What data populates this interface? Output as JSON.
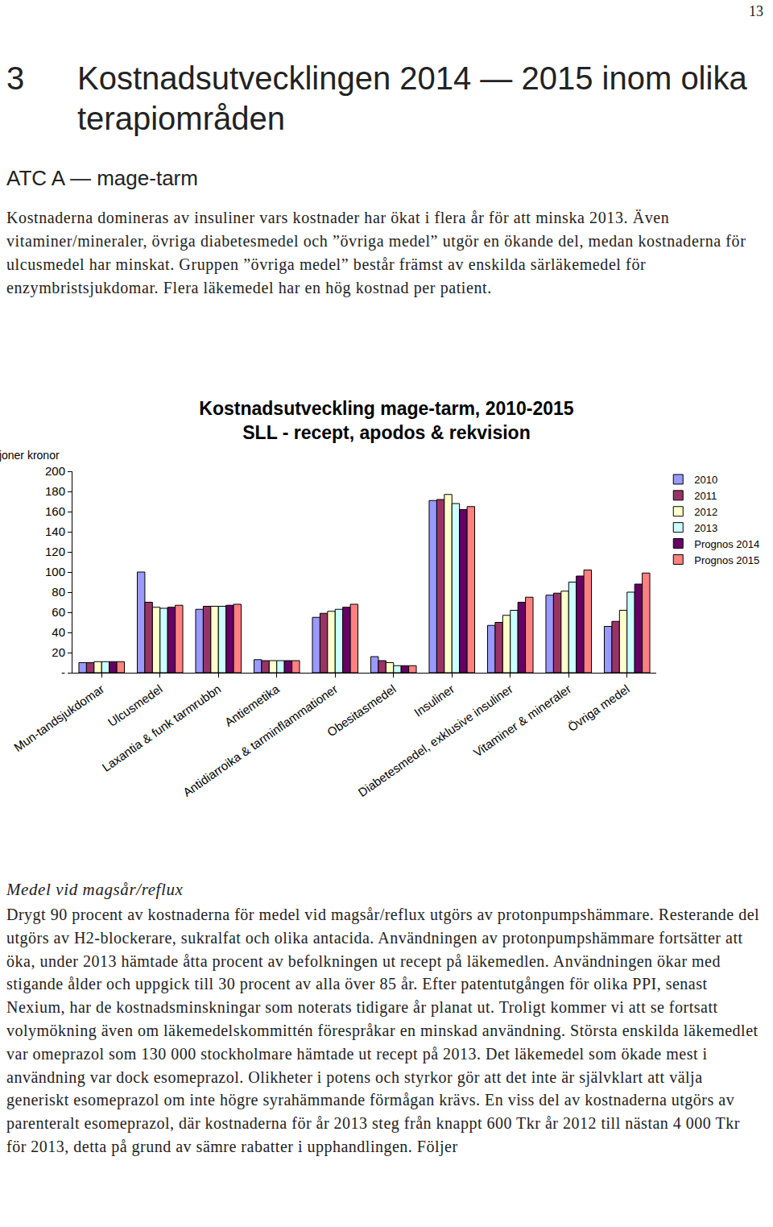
{
  "page_number": "13",
  "heading": {
    "number": "3",
    "text": "Kostnadsutvecklingen 2014 — 2015 inom olika terapiområden"
  },
  "section": "ATC A — mage-tarm",
  "intro": "Kostnaderna domineras av insuliner vars kostnader har ökat i flera år för att minska 2013. Även vitaminer/mineraler, övriga diabetesmedel och ”övriga medel” utgör en ökande del, medan kostnaderna för ulcusmedel har minskat. Gruppen ”övriga medel” består främst av enskilda särläkemedel för enzymbristsjukdomar. Flera läkemedel har en hög kostnad per patient.",
  "chart_data": {
    "type": "bar",
    "title": "Kostnadsutveckling mage-tarm, 2010-2015\nSLL - recept, apodos & rekvision",
    "y_label": "Miljoner kronor",
    "categories": [
      "Mun-tandsjukdomar",
      "Ulcusmedel",
      "Laxantia & funk tarmrubbn",
      "Antiemetika",
      "Antidiarroika & tarminflammationer",
      "Obesitasmedel",
      "Insuliner",
      "Diabetesmedel, exklusive insuliner",
      "Vitaminer & mineraler",
      "Övriga medel"
    ],
    "series": [
      {
        "name": "2010",
        "color": "#9999ff",
        "values": [
          10,
          100,
          63,
          13,
          55,
          16,
          171,
          47,
          77,
          46
        ]
      },
      {
        "name": "2011",
        "color": "#993366",
        "values": [
          10,
          70,
          66,
          12,
          59,
          12,
          172,
          50,
          79,
          51
        ]
      },
      {
        "name": "2012",
        "color": "#ffffcc",
        "values": [
          11,
          65,
          66,
          12,
          61,
          10,
          177,
          57,
          81,
          62
        ]
      },
      {
        "name": "2013",
        "color": "#ccffff",
        "values": [
          11,
          64,
          66,
          12,
          63,
          7,
          168,
          62,
          90,
          80
        ]
      },
      {
        "name": "Prognos 2014",
        "color": "#660066",
        "values": [
          11,
          65,
          67,
          12,
          65,
          7,
          162,
          70,
          96,
          88
        ]
      },
      {
        "name": "Prognos 2015",
        "color": "#ff8080",
        "values": [
          11,
          67,
          68,
          12,
          68,
          7,
          165,
          75,
          102,
          99
        ]
      }
    ],
    "ylim": [
      0,
      200
    ],
    "yticks": [
      {
        "value": 0,
        "label": "-"
      },
      20,
      40,
      60,
      80,
      100,
      120,
      140,
      160,
      180,
      200
    ],
    "grid": false,
    "legend": "right"
  },
  "subheading": "Medel vid magsår/reflux",
  "body": "Drygt 90 procent av kostnaderna för medel vid magsår/reflux utgörs av protonpumpshämmare. Resterande del utgörs av H2-blockerare, sukralfat och olika antacida. Användningen av protonpumpshämmare fortsätter att öka, under 2013 hämtade åtta procent av befolkningen ut recept på läkemedlen. Användningen ökar med stigande ålder och uppgick till 30 procent av alla över 85 år. Efter patentutgången för olika PPI, senast Nexium, har de kostnadsminskningar som noterats tidigare år planat ut. Troligt kommer vi att se fortsatt volymökning även om läkemedelskommittén förespråkar en minskad användning. Största enskilda läkemedlet var omeprazol som 130 000 stockholmare hämtade ut recept på 2013. Det läkemedel som ökade mest i användning var dock esomeprazol. Olikheter i potens och styrkor gör att det inte är självklart att välja generiskt esomeprazol om inte högre syrahämmande förmågan krävs. En viss del av kostnaderna utgörs av parenteralt esomeprazol, där kostnaderna för år 2013 steg från knappt 600 Tkr år 2012 till nästan 4 000 Tkr för 2013, detta på grund av sämre rabatter i upphandlingen. Följer"
}
